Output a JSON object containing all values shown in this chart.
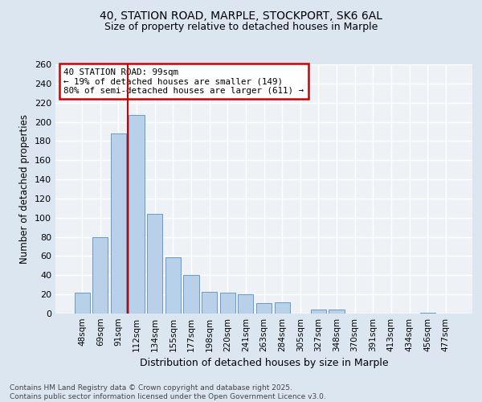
{
  "title1": "40, STATION ROAD, MARPLE, STOCKPORT, SK6 6AL",
  "title2": "Size of property relative to detached houses in Marple",
  "xlabel": "Distribution of detached houses by size in Marple",
  "ylabel": "Number of detached properties",
  "categories": [
    "48sqm",
    "69sqm",
    "91sqm",
    "112sqm",
    "134sqm",
    "155sqm",
    "177sqm",
    "198sqm",
    "220sqm",
    "241sqm",
    "263sqm",
    "284sqm",
    "305sqm",
    "327sqm",
    "348sqm",
    "370sqm",
    "391sqm",
    "413sqm",
    "434sqm",
    "456sqm",
    "477sqm"
  ],
  "values": [
    22,
    80,
    188,
    207,
    104,
    59,
    40,
    23,
    22,
    20,
    11,
    12,
    0,
    4,
    4,
    0,
    0,
    0,
    0,
    1,
    0
  ],
  "bar_color": "#b8d0e8",
  "bar_edge_color": "#6699cc",
  "vline_color": "#cc0000",
  "vline_pos": 2.5,
  "annotation_title": "40 STATION ROAD: 99sqm",
  "annotation_line1": "← 19% of detached houses are smaller (149)",
  "annotation_line2": "80% of semi-detached houses are larger (611) →",
  "annotation_box_edgecolor": "#cc0000",
  "ylim": [
    0,
    260
  ],
  "yticks": [
    0,
    20,
    40,
    60,
    80,
    100,
    120,
    140,
    160,
    180,
    200,
    220,
    240,
    260
  ],
  "footer1": "Contains HM Land Registry data © Crown copyright and database right 2025.",
  "footer2": "Contains public sector information licensed under the Open Government Licence v3.0.",
  "bg_color": "#dce6f0",
  "plot_bg_color": "#eef2f7"
}
